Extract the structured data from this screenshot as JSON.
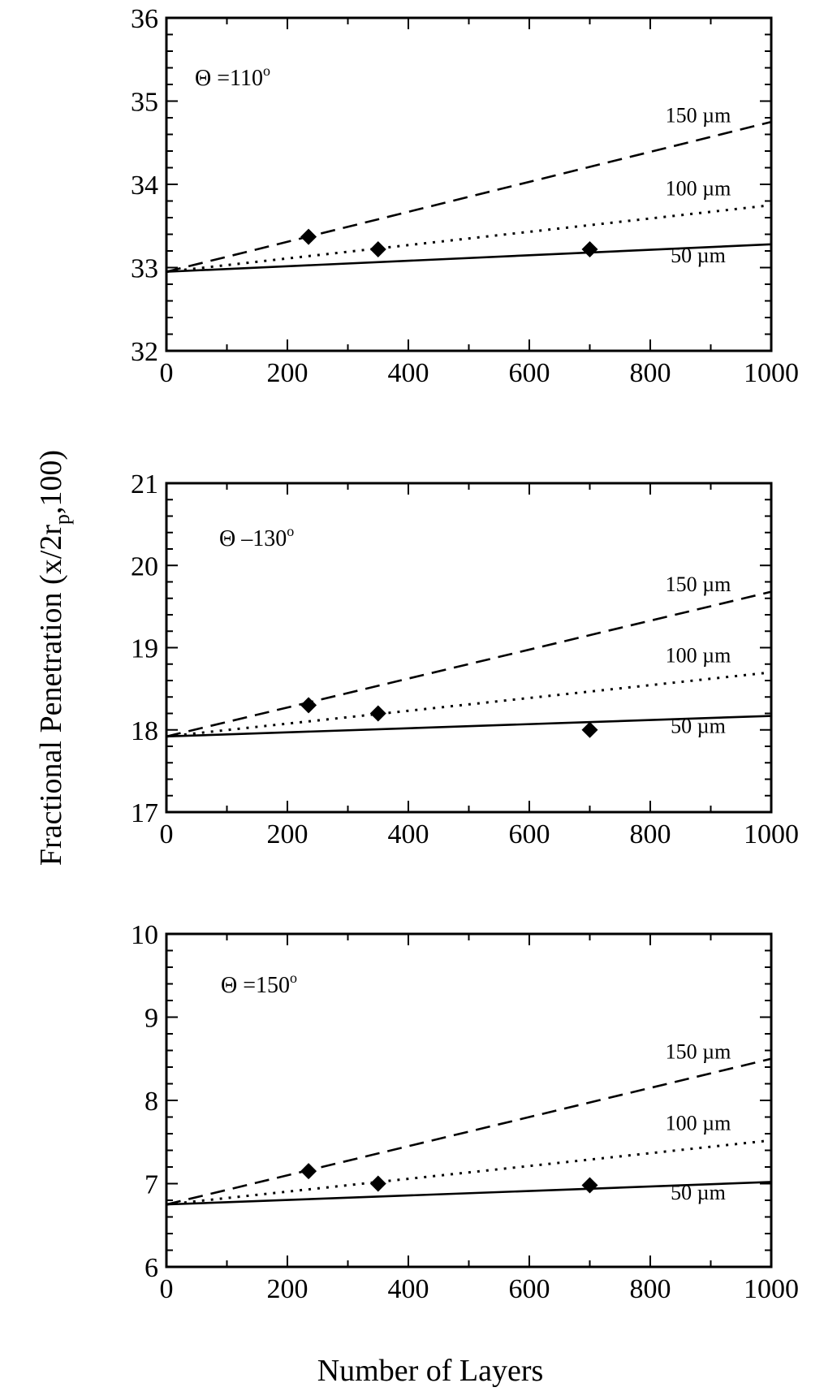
{
  "figure": {
    "ylabel": "Fractional Penetration (x/2r",
    "ylabel_sub": "p",
    "ylabel_tail": ",100)",
    "xlabel": "Number of Layers"
  },
  "chart_data": [
    {
      "type": "line",
      "annotation": "Θ =110",
      "annotation_sup": "o",
      "xlim": [
        0,
        1000
      ],
      "ylim": [
        32,
        36
      ],
      "xticks": [
        0,
        200,
        400,
        600,
        800,
        1000
      ],
      "yticks": [
        32,
        33,
        34,
        35,
        36
      ],
      "series": [
        {
          "name": "150 µm",
          "style": "dashed",
          "x": [
            0,
            1000
          ],
          "y": [
            32.95,
            34.75
          ]
        },
        {
          "name": "100 µm",
          "style": "dotted",
          "x": [
            0,
            1000
          ],
          "y": [
            32.95,
            33.75
          ]
        },
        {
          "name": "50 µm",
          "style": "solid",
          "x": [
            0,
            1000
          ],
          "y": [
            32.95,
            33.28
          ]
        }
      ],
      "points": {
        "x": [
          235,
          350,
          700
        ],
        "y": [
          33.37,
          33.22,
          33.22
        ]
      }
    },
    {
      "type": "line",
      "annotation": "Θ –130",
      "annotation_sup": "o",
      "xlim": [
        0,
        1000
      ],
      "ylim": [
        17,
        21
      ],
      "xticks": [
        0,
        200,
        400,
        600,
        800,
        1000
      ],
      "yticks": [
        17,
        18,
        19,
        20,
        21
      ],
      "series": [
        {
          "name": "150 µm",
          "style": "dashed",
          "x": [
            0,
            1000
          ],
          "y": [
            17.92,
            19.68
          ]
        },
        {
          "name": "100 µm",
          "style": "dotted",
          "x": [
            0,
            1000
          ],
          "y": [
            17.92,
            18.7
          ]
        },
        {
          "name": "50 µm",
          "style": "solid",
          "x": [
            0,
            1000
          ],
          "y": [
            17.92,
            18.17
          ]
        }
      ],
      "points": {
        "x": [
          235,
          350,
          700
        ],
        "y": [
          18.3,
          18.2,
          18.0
        ]
      }
    },
    {
      "type": "line",
      "annotation": "Θ =150",
      "annotation_sup": "o",
      "xlim": [
        0,
        1000
      ],
      "ylim": [
        6,
        10
      ],
      "xticks": [
        0,
        200,
        400,
        600,
        800,
        1000
      ],
      "yticks": [
        6,
        7,
        8,
        9,
        10
      ],
      "series": [
        {
          "name": "150 µm",
          "style": "dashed",
          "x": [
            0,
            1000
          ],
          "y": [
            6.75,
            8.5
          ]
        },
        {
          "name": "100 µm",
          "style": "dotted",
          "x": [
            0,
            1000
          ],
          "y": [
            6.75,
            7.52
          ]
        },
        {
          "name": "50 µm",
          "style": "solid",
          "x": [
            0,
            1000
          ],
          "y": [
            6.75,
            7.02
          ]
        }
      ],
      "points": {
        "x": [
          235,
          350,
          700
        ],
        "y": [
          7.15,
          7.0,
          6.98
        ]
      }
    }
  ]
}
